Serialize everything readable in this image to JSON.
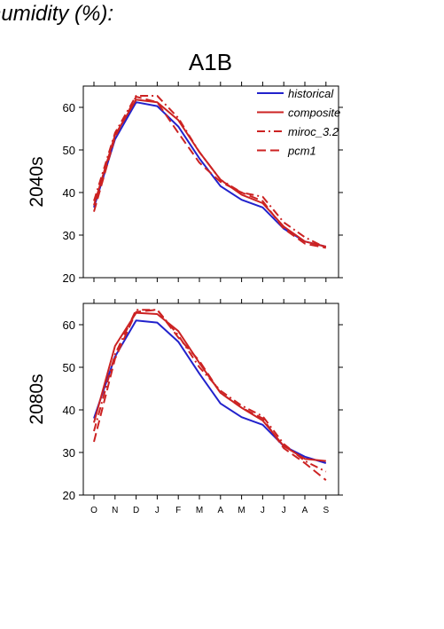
{
  "header": {
    "title": "humidity (%):",
    "scenario": "A1B"
  },
  "chart_data": [
    {
      "type": "line",
      "panel_label": "2040s",
      "categories": [
        "O",
        "N",
        "D",
        "J",
        "F",
        "M",
        "A",
        "M",
        "J",
        "J",
        "A",
        "S"
      ],
      "ylim": [
        20,
        65
      ],
      "yticks": [
        20,
        30,
        40,
        50,
        60
      ],
      "legend": "top-right",
      "series": [
        {
          "name": "historical",
          "color": "#2222cc",
          "dash": "solid",
          "values": [
            36.5,
            52.5,
            61.2,
            60.3,
            55.5,
            48.0,
            41.5,
            38.3,
            36.5,
            31.5,
            28.5,
            27.3
          ]
        },
        {
          "name": "composite",
          "color": "#cc2222",
          "dash": "solid",
          "values": [
            37.0,
            53.5,
            61.8,
            61.2,
            57.0,
            49.5,
            43.0,
            39.5,
            37.5,
            32.0,
            28.5,
            27.3
          ]
        },
        {
          "name": "miroc_3.2",
          "color": "#cc2222",
          "dash": "dashdot",
          "values": [
            38.0,
            54.0,
            62.7,
            62.7,
            57.5,
            49.5,
            43.0,
            40.0,
            39.0,
            33.0,
            29.5,
            27.0
          ]
        },
        {
          "name": "pcm1",
          "color": "#cc2222",
          "dash": "dashed",
          "values": [
            35.5,
            53.0,
            62.5,
            61.2,
            54.0,
            47.0,
            42.5,
            40.0,
            38.0,
            31.5,
            28.0,
            27.0
          ]
        }
      ]
    },
    {
      "type": "line",
      "panel_label": "2080s",
      "categories": [
        "O",
        "N",
        "D",
        "J",
        "F",
        "M",
        "A",
        "M",
        "J",
        "J",
        "A",
        "S"
      ],
      "ylim": [
        20,
        65
      ],
      "yticks": [
        20,
        30,
        40,
        50,
        60
      ],
      "xticks": [
        "O",
        "N",
        "D",
        "J",
        "F",
        "M",
        "A",
        "M",
        "J",
        "J",
        "A",
        "S"
      ],
      "series": [
        {
          "name": "historical",
          "color": "#2222cc",
          "dash": "solid",
          "values": [
            38.0,
            52.5,
            61.0,
            60.5,
            56.0,
            48.5,
            41.5,
            38.3,
            36.5,
            31.5,
            29.0,
            27.5
          ]
        },
        {
          "name": "composite",
          "color": "#cc2222",
          "dash": "solid",
          "values": [
            37.0,
            55.0,
            62.8,
            62.5,
            58.5,
            51.0,
            44.0,
            40.5,
            37.5,
            31.5,
            28.5,
            28.0
          ]
        },
        {
          "name": "miroc_3.2",
          "color": "#cc2222",
          "dash": "dashdot",
          "values": [
            35.0,
            53.0,
            63.5,
            63.5,
            57.5,
            50.0,
            44.5,
            41.0,
            38.5,
            32.0,
            28.0,
            25.5
          ]
        },
        {
          "name": "pcm1",
          "color": "#cc2222",
          "dash": "dashed",
          "values": [
            32.5,
            52.0,
            63.0,
            63.5,
            57.0,
            51.5,
            44.0,
            40.5,
            38.0,
            31.0,
            27.5,
            23.5
          ]
        }
      ]
    }
  ]
}
